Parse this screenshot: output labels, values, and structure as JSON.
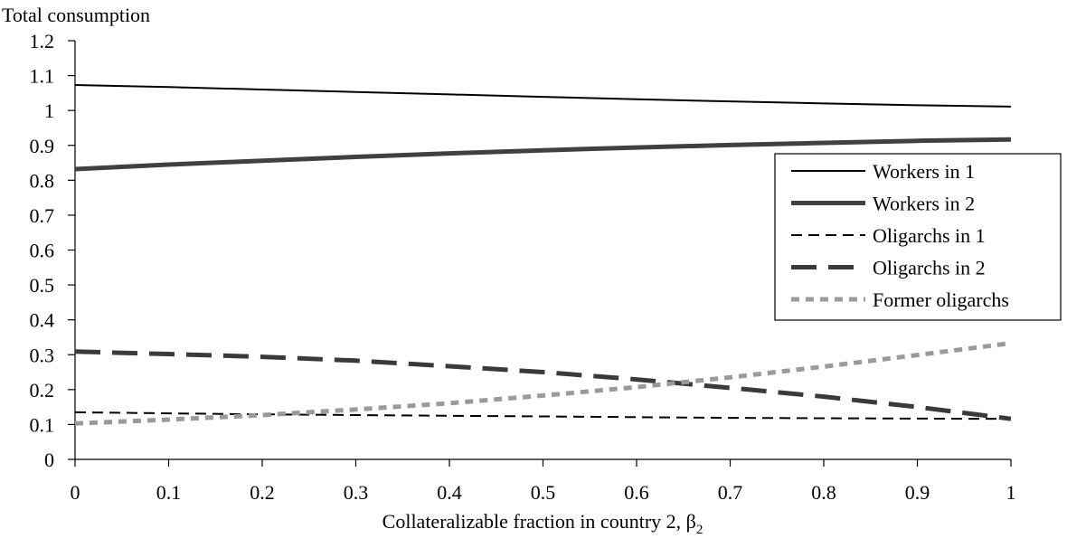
{
  "chart_data": {
    "type": "line",
    "ylabel": "Total consumption",
    "xlabel_main": "Collateralizable fraction in country 2, ",
    "xlabel_symbol": "β",
    "xlabel_subscript": "2",
    "x": [
      0,
      0.1,
      0.2,
      0.3,
      0.4,
      0.5,
      0.6,
      0.7,
      0.8,
      0.9,
      1
    ],
    "x_tick_labels": [
      "0",
      "0.1",
      "0.2",
      "0.3",
      "0.4",
      "0.5",
      "0.6",
      "0.7",
      "0.8",
      "0.9",
      "1"
    ],
    "xlim": [
      0,
      1
    ],
    "ylim": [
      0,
      1.2
    ],
    "y_ticks": [
      0,
      0.1,
      0.2,
      0.3,
      0.4,
      0.5,
      0.6,
      0.7,
      0.8,
      0.9,
      1,
      1.1,
      1.2
    ],
    "y_tick_labels": [
      "0",
      "0.1",
      "0.2",
      "0.3",
      "0.4",
      "0.5",
      "0.6",
      "0.7",
      "0.8",
      "0.9",
      "1",
      "1.1",
      "1.2"
    ],
    "grid": false,
    "legend_position": "right",
    "series": [
      {
        "name": "Workers in 1",
        "color": "#000000",
        "style": "thin-solid",
        "values": [
          1.073,
          1.067,
          1.06,
          1.053,
          1.046,
          1.039,
          1.032,
          1.026,
          1.02,
          1.015,
          1.011
        ]
      },
      {
        "name": "Workers in 2",
        "color": "#404040",
        "style": "thick-solid",
        "values": [
          0.832,
          0.845,
          0.856,
          0.867,
          0.877,
          0.886,
          0.894,
          0.901,
          0.907,
          0.913,
          0.917
        ]
      },
      {
        "name": "Oligarchs in 1",
        "color": "#000000",
        "style": "thin-dashed",
        "values": [
          0.135,
          0.132,
          0.129,
          0.127,
          0.125,
          0.123,
          0.121,
          0.119,
          0.118,
          0.117,
          0.116
        ]
      },
      {
        "name": "Oligarchs in 2",
        "color": "#3a3a3a",
        "style": "thick-dashed",
        "values": [
          0.309,
          0.302,
          0.294,
          0.283,
          0.267,
          0.25,
          0.229,
          0.205,
          0.18,
          0.15,
          0.116
        ]
      },
      {
        "name": "Former oligarchs",
        "color": "#9a9a9a",
        "style": "dotted",
        "values": [
          0.103,
          0.114,
          0.127,
          0.143,
          0.161,
          0.183,
          0.207,
          0.235,
          0.266,
          0.299,
          0.333
        ]
      }
    ]
  }
}
